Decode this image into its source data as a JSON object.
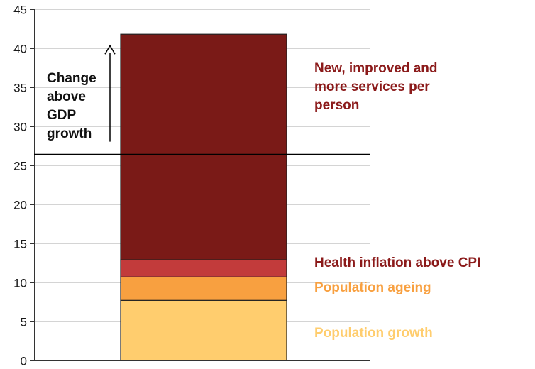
{
  "chart_data": {
    "type": "bar",
    "stacked": true,
    "categories": [
      ""
    ],
    "ylim": [
      0,
      45
    ],
    "yticks": [
      0,
      5,
      10,
      15,
      20,
      25,
      30,
      35,
      40,
      45
    ],
    "ytick_labels": [
      "0",
      "5",
      "10",
      "15",
      "20",
      "25",
      "30",
      "35",
      "40",
      "45"
    ],
    "grid": true,
    "series": [
      {
        "name": "Population growth",
        "values": [
          7.7
        ],
        "color": "#FFCD6E"
      },
      {
        "name": "Population ageing",
        "values": [
          3.0
        ],
        "color": "#F8A040"
      },
      {
        "name": "Health inflation above CPI",
        "values": [
          2.2
        ],
        "color": "#C23B3B"
      },
      {
        "name": "New, improved and more services per person",
        "values": [
          28.9
        ],
        "color": "#7A1A17"
      }
    ],
    "label_colors": [
      "#FFCD6E",
      "#F8A040",
      "#8B1A1A",
      "#8B1A1A"
    ],
    "gdp_growth_line": 26.4,
    "annotation": [
      "Change",
      "above",
      "GDP",
      "growth"
    ]
  }
}
